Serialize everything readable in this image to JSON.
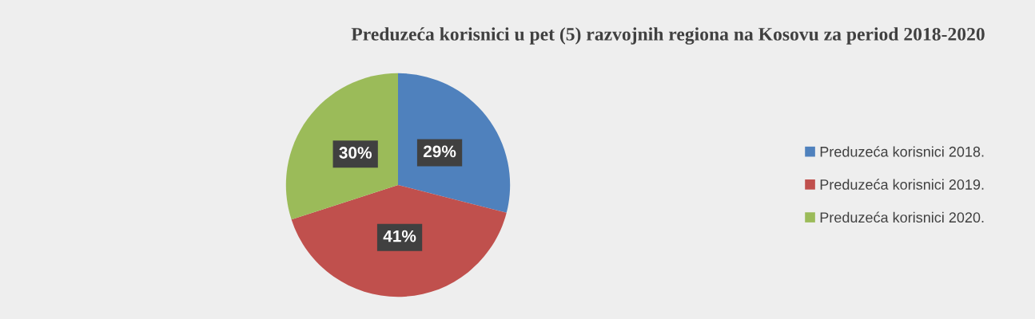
{
  "chart_data": {
    "type": "pie",
    "title": "Preduzeća korisnici u pet (5) razvojnih regiona na Kosovu za period 2018-2020",
    "categories": [
      "Preduzeća korisnici 2018.",
      "Preduzeća korisnici 2019.",
      "Preduzeća korisnici 2020."
    ],
    "values": [
      29,
      41,
      30
    ],
    "colors": [
      "#4f81bd",
      "#c0504d",
      "#9bbb59"
    ],
    "value_labels": [
      "29%",
      "41%",
      "30%"
    ],
    "legend": "right"
  }
}
